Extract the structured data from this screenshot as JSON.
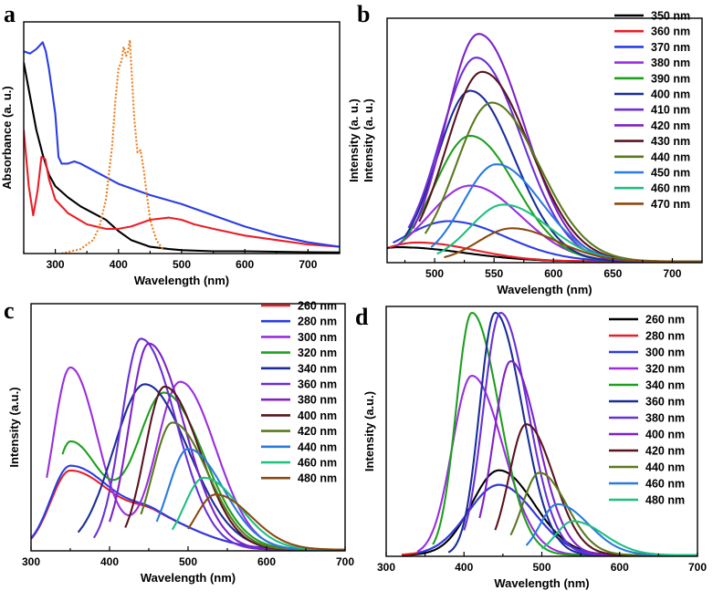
{
  "chart_data": [
    {
      "panel": "a",
      "type": "line",
      "xlabel": "Wavelength (nm)",
      "ylabel": "Absorbance (a. u.)",
      "xlim": [
        250,
        750
      ],
      "ylim": [
        0,
        1
      ],
      "xticks": [
        300,
        400,
        500,
        600,
        700
      ],
      "series": [
        {
          "name": "black",
          "color": "#000000",
          "style": "solid",
          "x": [
            250,
            260,
            270,
            280,
            290,
            300,
            320,
            340,
            360,
            380,
            400,
            420,
            450,
            480,
            500,
            550,
            600,
            650,
            700,
            750
          ],
          "y": [
            0.85,
            0.7,
            0.55,
            0.44,
            0.35,
            0.3,
            0.25,
            0.21,
            0.18,
            0.15,
            0.1,
            0.06,
            0.03,
            0.02,
            0.015,
            0.01,
            0.01,
            0.008,
            0.006,
            0.005
          ]
        },
        {
          "name": "red",
          "color": "#e8202a",
          "style": "solid",
          "x": [
            250,
            258,
            265,
            272,
            278,
            284,
            290,
            300,
            320,
            350,
            380,
            400,
            420,
            450,
            480,
            500,
            520,
            550,
            600,
            650,
            700,
            750
          ],
          "y": [
            0.55,
            0.3,
            0.17,
            0.28,
            0.43,
            0.42,
            0.33,
            0.24,
            0.18,
            0.13,
            0.11,
            0.11,
            0.12,
            0.15,
            0.16,
            0.15,
            0.13,
            0.11,
            0.08,
            0.06,
            0.04,
            0.03
          ]
        },
        {
          "name": "blue",
          "color": "#2a3ee6",
          "style": "solid",
          "x": [
            250,
            260,
            270,
            280,
            285,
            290,
            300,
            305,
            310,
            320,
            330,
            340,
            360,
            380,
            400,
            450,
            500,
            550,
            600,
            650,
            700,
            750
          ],
          "y": [
            0.9,
            0.89,
            0.91,
            0.94,
            0.9,
            0.82,
            0.62,
            0.43,
            0.4,
            0.4,
            0.41,
            0.4,
            0.37,
            0.34,
            0.31,
            0.26,
            0.22,
            0.17,
            0.12,
            0.08,
            0.05,
            0.03
          ]
        },
        {
          "name": "orange",
          "color": "#ee7a18",
          "style": "dotted",
          "x": [
            310,
            340,
            360,
            370,
            380,
            390,
            395,
            400,
            405,
            408,
            412,
            415,
            418,
            420,
            425,
            430,
            435,
            440,
            445,
            450,
            460,
            470
          ],
          "y": [
            0,
            0.02,
            0.06,
            0.12,
            0.24,
            0.48,
            0.68,
            0.82,
            0.86,
            0.92,
            0.88,
            0.9,
            0.95,
            0.85,
            0.6,
            0.45,
            0.46,
            0.37,
            0.26,
            0.15,
            0.06,
            0.02
          ]
        }
      ]
    },
    {
      "panel": "b",
      "type": "line",
      "xlabel": "Wavelength (nm)",
      "ylabel": "Intensity (a. u.)",
      "ylabel2": "Intensity (a. u.)",
      "xlim": [
        460,
        725
      ],
      "ylim": [
        0,
        1
      ],
      "xticks": [
        500,
        550,
        600,
        650,
        700
      ],
      "series": [
        {
          "name": "350 nm",
          "color": "#000000",
          "start": 460,
          "peak_x": 470,
          "peak_y": 0.06,
          "sig_l": 30,
          "sig_r": 55
        },
        {
          "name": "360 nm",
          "color": "#e8202a",
          "start": 462,
          "peak_x": 485,
          "peak_y": 0.08,
          "sig_l": 30,
          "sig_r": 48
        },
        {
          "name": "370 nm",
          "color": "#2a3ee6",
          "start": 465,
          "peak_x": 512,
          "peak_y": 0.17,
          "sig_l": 38,
          "sig_r": 48
        },
        {
          "name": "380 nm",
          "color": "#9a2ee0",
          "start": 468,
          "peak_x": 530,
          "peak_y": 0.32,
          "sig_l": 35,
          "sig_r": 42
        },
        {
          "name": "390 nm",
          "color": "#1ea01e",
          "start": 472,
          "peak_x": 530,
          "peak_y": 0.53,
          "sig_l": 30,
          "sig_r": 38
        },
        {
          "name": "400 nm",
          "color": "#1a2e9a",
          "start": 475,
          "peak_x": 530,
          "peak_y": 0.72,
          "sig_l": 28,
          "sig_r": 37
        },
        {
          "name": "410 nm",
          "color": "#6a30d8",
          "start": 478,
          "peak_x": 535,
          "peak_y": 0.86,
          "sig_l": 30,
          "sig_r": 38
        },
        {
          "name": "420 nm",
          "color": "#7e22c8",
          "start": 482,
          "peak_x": 537,
          "peak_y": 0.96,
          "sig_l": 28,
          "sig_r": 38
        },
        {
          "name": "430 nm",
          "color": "#5a1420",
          "start": 487,
          "peak_x": 540,
          "peak_y": 0.8,
          "sig_l": 30,
          "sig_r": 40
        },
        {
          "name": "440 nm",
          "color": "#5a7a1e",
          "start": 492,
          "peak_x": 548,
          "peak_y": 0.67,
          "sig_l": 30,
          "sig_r": 40
        },
        {
          "name": "450 nm",
          "color": "#2a7ae0",
          "start": 497,
          "peak_x": 552,
          "peak_y": 0.41,
          "sig_l": 28,
          "sig_r": 38
        },
        {
          "name": "460 nm",
          "color": "#1ec080",
          "start": 502,
          "peak_x": 558,
          "peak_y": 0.24,
          "sig_l": 28,
          "sig_r": 38
        },
        {
          "name": "470 nm",
          "color": "#8a4a10",
          "start": 508,
          "peak_x": 565,
          "peak_y": 0.14,
          "sig_l": 28,
          "sig_r": 38
        }
      ]
    },
    {
      "panel": "c",
      "type": "line",
      "xlabel": "Wavelength (nm)",
      "ylabel": "Intensity (a.u.)",
      "xlim": [
        300,
        700
      ],
      "ylim": [
        0,
        1
      ],
      "xticks": [
        300,
        400,
        500,
        600,
        700
      ],
      "series": [
        {
          "name": "260 nm",
          "color": "#e8202a",
          "start": 300,
          "peaks": [
            [
              350,
              0.33,
              25,
              60
            ],
            [
              460,
              0.1,
              30,
              60
            ]
          ]
        },
        {
          "name": "280 nm",
          "color": "#2a3ee6",
          "start": 300,
          "peaks": [
            [
              350,
              0.35,
              25,
              60
            ],
            [
              460,
              0.1,
              30,
              60
            ]
          ]
        },
        {
          "name": "300 nm",
          "color": "#9a2ee0",
          "start": 320,
          "peaks": [
            [
              350,
              0.76,
              22,
              35
            ],
            [
              490,
              0.7,
              30,
              45
            ]
          ]
        },
        {
          "name": "320 nm",
          "color": "#1ea01e",
          "start": 340,
          "peaks": [
            [
              350,
              0.45,
              20,
              40
            ],
            [
              470,
              0.65,
              35,
              50
            ]
          ]
        },
        {
          "name": "340 nm",
          "color": "#1a2e9a",
          "start": 360,
          "peaks": [
            [
              445,
              0.69,
              40,
              55
            ]
          ]
        },
        {
          "name": "360 nm",
          "color": "#6a30d8",
          "start": 380,
          "peaks": [
            [
              440,
              0.88,
              25,
              45
            ]
          ]
        },
        {
          "name": "380 nm",
          "color": "#7e22c8",
          "start": 400,
          "peaks": [
            [
              450,
              0.86,
              25,
              45
            ]
          ]
        },
        {
          "name": "400 nm",
          "color": "#5a1420",
          "start": 420,
          "peaks": [
            [
              470,
              0.68,
              25,
              45
            ]
          ]
        },
        {
          "name": "420 nm",
          "color": "#5a7a1e",
          "start": 440,
          "peaks": [
            [
              480,
              0.53,
              25,
              45
            ]
          ]
        },
        {
          "name": "440 nm",
          "color": "#2a7ae0",
          "start": 460,
          "peaks": [
            [
              500,
              0.42,
              25,
              45
            ]
          ]
        },
        {
          "name": "460 nm",
          "color": "#1ec080",
          "start": 480,
          "peaks": [
            [
              520,
              0.3,
              25,
              45
            ]
          ]
        },
        {
          "name": "480 nm",
          "color": "#8a4a10",
          "start": 500,
          "peaks": [
            [
              535,
              0.23,
              25,
              45
            ]
          ]
        }
      ]
    },
    {
      "panel": "d",
      "type": "line",
      "xlabel": "Wavelength (nm)",
      "ylabel": "Intensity (a.u.)",
      "xlim": [
        300,
        700
      ],
      "ylim": [
        0,
        1
      ],
      "xticks": [
        300,
        400,
        500,
        600,
        700
      ],
      "series": [
        {
          "name": "260 nm",
          "color": "#000000",
          "start": 320,
          "peaks": [
            [
              445,
              0.35,
              35,
              45
            ]
          ]
        },
        {
          "name": "280 nm",
          "color": "#e8202a",
          "start": 320,
          "peaks": [
            [
              445,
              0.29,
              40,
              45
            ]
          ]
        },
        {
          "name": "300 nm",
          "color": "#2a3ee6",
          "start": 340,
          "peaks": [
            [
              445,
              0.29,
              40,
              45
            ]
          ]
        },
        {
          "name": "320 nm",
          "color": "#9a2ee0",
          "start": 340,
          "peaks": [
            [
              410,
              0.74,
              25,
              40
            ]
          ]
        },
        {
          "name": "340 nm",
          "color": "#1ea01e",
          "start": 360,
          "peaks": [
            [
              410,
              1.0,
              20,
              35
            ]
          ]
        },
        {
          "name": "360 nm",
          "color": "#1a2e9a",
          "start": 380,
          "peaks": [
            [
              440,
              1.0,
              20,
              35
            ]
          ]
        },
        {
          "name": "380 nm",
          "color": "#6a30d8",
          "start": 400,
          "peaks": [
            [
              447,
              1.0,
              22,
              35
            ]
          ]
        },
        {
          "name": "400 nm",
          "color": "#7e22c8",
          "start": 420,
          "peaks": [
            [
              460,
              0.8,
              22,
              35
            ]
          ]
        },
        {
          "name": "420 nm",
          "color": "#5a1420",
          "start": 440,
          "peaks": [
            [
              480,
              0.54,
              22,
              35
            ]
          ]
        },
        {
          "name": "440 nm",
          "color": "#5a7a1e",
          "start": 460,
          "peaks": [
            [
              497,
              0.34,
              22,
              35
            ]
          ]
        },
        {
          "name": "460 nm",
          "color": "#2a7ae0",
          "start": 480,
          "peaks": [
            [
              520,
              0.21,
              22,
              40
            ]
          ]
        },
        {
          "name": "480 nm",
          "color": "#1ec080",
          "start": 500,
          "peaks": [
            [
              540,
              0.14,
              22,
              40
            ]
          ]
        }
      ]
    }
  ]
}
